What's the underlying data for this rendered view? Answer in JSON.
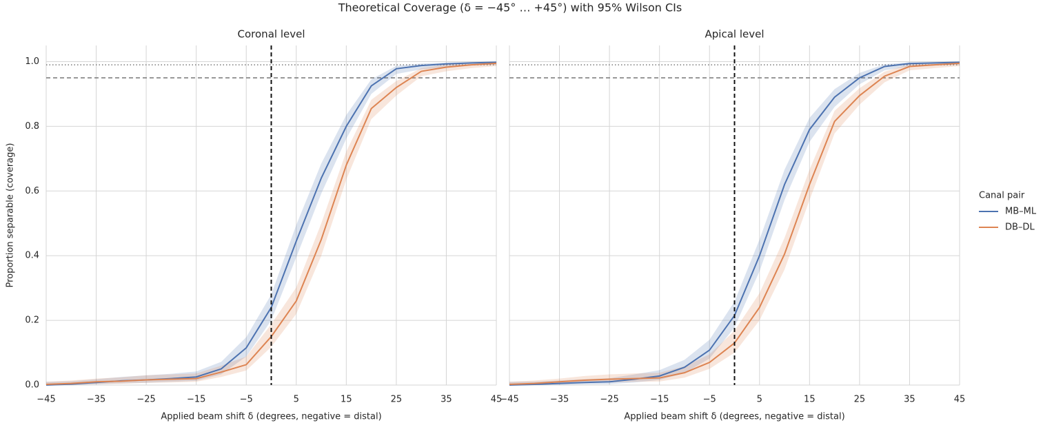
{
  "title": "Theoretical Coverage (δ = −45° … +45°) with 95% Wilson CIs",
  "legend_title": "Canal pair",
  "chart_data": [
    {
      "type": "line",
      "title": "Coronal level",
      "x_label": "Applied beam shift δ (degrees, negative = distal)",
      "y_label": "Proportion separable (coverage)",
      "x": [
        -45,
        -40,
        -35,
        -30,
        -25,
        -20,
        -15,
        -10,
        -5,
        0,
        5,
        10,
        15,
        20,
        25,
        30,
        35,
        40,
        45
      ],
      "series": [
        {
          "name": "MB–ML",
          "color": "#4c72b0",
          "values": [
            0.0,
            0.003,
            0.008,
            0.013,
            0.016,
            0.02,
            0.025,
            0.05,
            0.115,
            0.24,
            0.445,
            0.64,
            0.8,
            0.925,
            0.978,
            0.988,
            0.993,
            0.996,
            0.998
          ],
          "ci_lower": [
            0,
            0,
            0.002,
            0.005,
            0.007,
            0.01,
            0.013,
            0.033,
            0.088,
            0.2,
            0.395,
            0.592,
            0.762,
            0.9,
            0.962,
            0.976,
            0.983,
            0.988,
            0.99
          ],
          "ci_upper": [
            0.01,
            0.012,
            0.018,
            0.025,
            0.03,
            0.035,
            0.042,
            0.072,
            0.148,
            0.28,
            0.495,
            0.685,
            0.835,
            0.945,
            0.987,
            0.994,
            0.997,
            0.999,
            1.0
          ]
        },
        {
          "name": "DB–DL",
          "color": "#dd8452",
          "values": [
            0.002,
            0.005,
            0.01,
            0.012,
            0.016,
            0.018,
            0.02,
            0.04,
            0.063,
            0.15,
            0.26,
            0.45,
            0.68,
            0.855,
            0.92,
            0.97,
            0.983,
            0.99,
            0.995
          ],
          "ci_lower": [
            0,
            0,
            0.003,
            0.004,
            0.007,
            0.008,
            0.01,
            0.025,
            0.045,
            0.118,
            0.22,
            0.4,
            0.635,
            0.822,
            0.895,
            0.955,
            0.97,
            0.98,
            0.986
          ],
          "ci_upper": [
            0.01,
            0.014,
            0.02,
            0.024,
            0.03,
            0.033,
            0.036,
            0.06,
            0.088,
            0.188,
            0.302,
            0.5,
            0.722,
            0.882,
            0.94,
            0.98,
            0.991,
            0.995,
            0.998
          ]
        }
      ],
      "xlim": [
        -45,
        45
      ],
      "ylim": [
        0,
        1.05
      ],
      "xticks": [
        {
          "value": -45,
          "label": "−45"
        },
        {
          "value": -35,
          "label": "−35"
        },
        {
          "value": -25,
          "label": "−25"
        },
        {
          "value": -15,
          "label": "−15"
        },
        {
          "value": -5,
          "label": "−5"
        },
        5,
        15,
        25,
        35,
        45
      ],
      "yticks": [
        {
          "value": 0,
          "label": "0.0"
        },
        0.2,
        0.4,
        0.6,
        0.8,
        {
          "value": 1,
          "label": "1.0"
        }
      ],
      "hlines": [
        {
          "value": 0.95,
          "style": "dashed"
        },
        {
          "value": 0.99,
          "style": "dotted"
        }
      ],
      "vlines": [
        {
          "value": 0,
          "style": "dashed"
        }
      ],
      "grid": true
    },
    {
      "type": "line",
      "title": "Apical level",
      "x_label": "Applied beam shift δ (degrees, negative = distal)",
      "x": [
        -45,
        -40,
        -35,
        -30,
        -25,
        -20,
        -15,
        -10,
        -5,
        0,
        5,
        10,
        15,
        20,
        25,
        30,
        35,
        40,
        45
      ],
      "series": [
        {
          "name": "MB–ML",
          "color": "#4c72b0",
          "values": [
            0.0,
            0.002,
            0.005,
            0.008,
            0.01,
            0.018,
            0.028,
            0.055,
            0.108,
            0.215,
            0.4,
            0.62,
            0.79,
            0.89,
            0.95,
            0.985,
            0.994,
            0.996,
            0.998
          ],
          "ci_lower": [
            0,
            0,
            0,
            0.002,
            0.003,
            0.008,
            0.016,
            0.037,
            0.082,
            0.178,
            0.352,
            0.572,
            0.752,
            0.86,
            0.93,
            0.973,
            0.985,
            0.988,
            0.99
          ],
          "ci_upper": [
            0.01,
            0.011,
            0.014,
            0.018,
            0.021,
            0.033,
            0.046,
            0.078,
            0.14,
            0.258,
            0.45,
            0.666,
            0.826,
            0.915,
            0.965,
            0.992,
            0.998,
            0.999,
            1.0
          ]
        },
        {
          "name": "DB–DL",
          "color": "#dd8452",
          "values": [
            0.002,
            0.005,
            0.01,
            0.015,
            0.018,
            0.02,
            0.022,
            0.038,
            0.07,
            0.13,
            0.24,
            0.405,
            0.62,
            0.815,
            0.895,
            0.955,
            0.985,
            0.99,
            0.995
          ],
          "ci_lower": [
            0,
            0,
            0.003,
            0.006,
            0.008,
            0.01,
            0.011,
            0.023,
            0.05,
            0.1,
            0.2,
            0.357,
            0.572,
            0.778,
            0.867,
            0.936,
            0.973,
            0.98,
            0.986
          ],
          "ci_upper": [
            0.01,
            0.014,
            0.02,
            0.028,
            0.033,
            0.036,
            0.038,
            0.058,
            0.095,
            0.168,
            0.284,
            0.455,
            0.666,
            0.848,
            0.918,
            0.969,
            0.992,
            0.995,
            0.998
          ]
        }
      ],
      "xlim": [
        -45,
        45
      ],
      "ylim": [
        0,
        1.05
      ],
      "xticks": [
        {
          "value": -45,
          "label": "−45"
        },
        {
          "value": -35,
          "label": "−35"
        },
        {
          "value": -25,
          "label": "−25"
        },
        {
          "value": -15,
          "label": "−15"
        },
        {
          "value": -5,
          "label": "−5"
        },
        5,
        15,
        25,
        35,
        45
      ],
      "yticks": [
        {
          "value": 0,
          "label": "0.0"
        },
        0.2,
        0.4,
        0.6,
        0.8,
        {
          "value": 1,
          "label": "1.0"
        }
      ],
      "hlines": [
        {
          "value": 0.95,
          "style": "dashed"
        },
        {
          "value": 0.99,
          "style": "dotted"
        }
      ],
      "vlines": [
        {
          "value": 0,
          "style": "dashed"
        }
      ],
      "grid": true
    }
  ]
}
